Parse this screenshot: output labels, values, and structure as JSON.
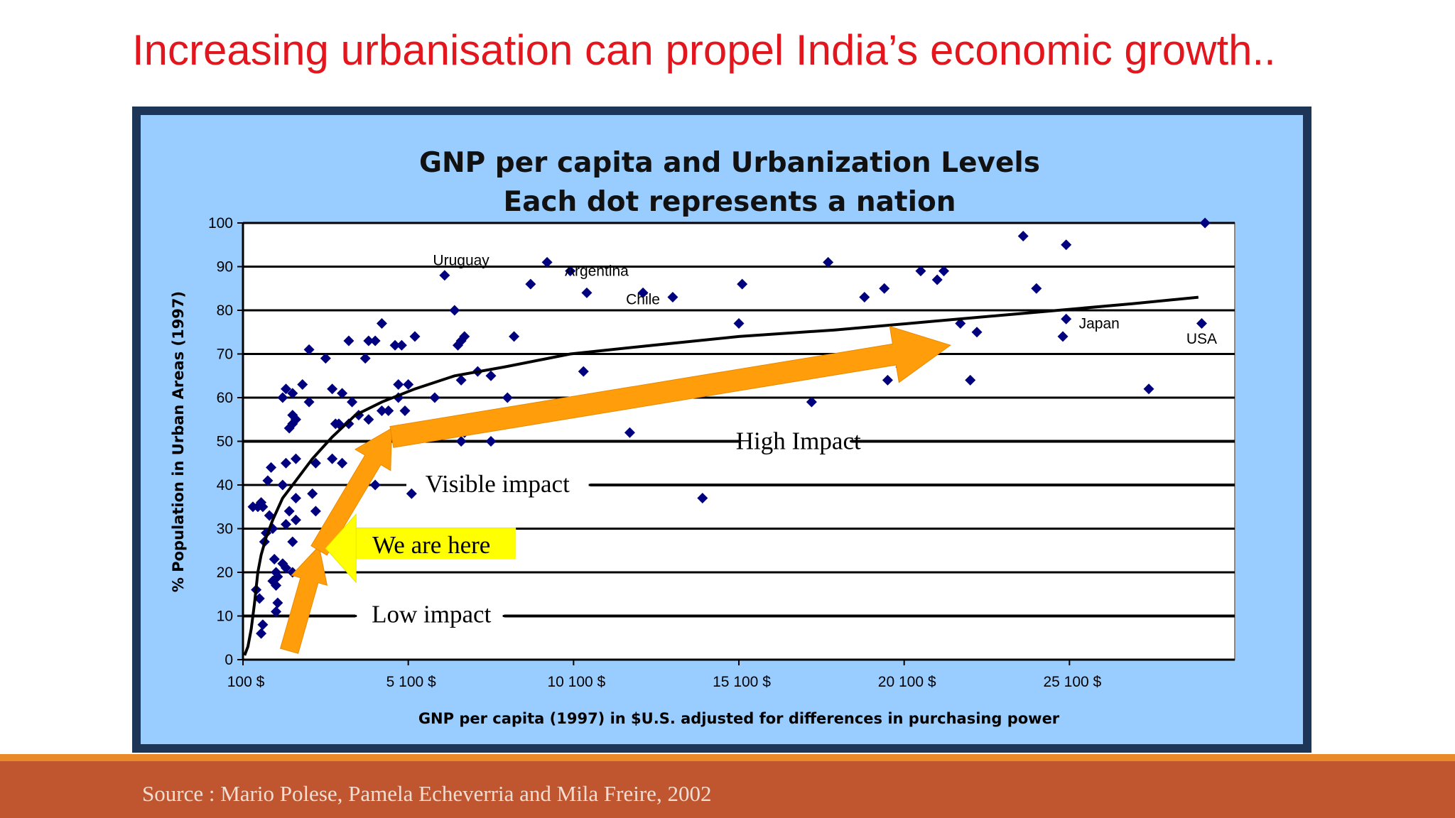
{
  "slide": {
    "title": "Increasing urbanisation can propel India’s economic growth..",
    "source": "Source : Mario Polese, Pamela Echeverria and Mila Freire, 2002"
  },
  "colors": {
    "title": "#e3161d",
    "chart_background": "#99ccff",
    "plot_background": "#ffffff",
    "point": "#00007f",
    "arrow": "#ff9d0a",
    "highlight": "#ffff00",
    "footer": "#bf5630"
  },
  "chart_data": {
    "type": "scatter",
    "title": "GNP per capita and Urbanization Levels",
    "subtitle": "Each dot represents a nation",
    "xlabel": "GNP per capita (1997) in $U.S. adjusted for differences in purchasing power",
    "ylabel": "% Population in Urban Areas (1997)",
    "xlim": [
      100,
      30100
    ],
    "ylim": [
      0,
      100
    ],
    "x_ticks": [
      {
        "value": 100,
        "label": "100  $"
      },
      {
        "value": 5100,
        "label": "5 100  $"
      },
      {
        "value": 10100,
        "label": "10 100  $"
      },
      {
        "value": 15100,
        "label": "15 100  $"
      },
      {
        "value": 20100,
        "label": "20 100  $"
      },
      {
        "value": 25100,
        "label": "25 100  $"
      }
    ],
    "y_ticks": [
      0,
      10,
      20,
      30,
      40,
      50,
      60,
      70,
      80,
      90,
      100
    ],
    "grid": "horizontal",
    "points": [
      [
        400,
        35
      ],
      [
        550,
        35
      ],
      [
        650,
        36
      ],
      [
        700,
        35
      ],
      [
        500,
        16
      ],
      [
        600,
        14
      ],
      [
        700,
        8
      ],
      [
        650,
        6
      ],
      [
        750,
        27
      ],
      [
        800,
        29
      ],
      [
        900,
        33
      ],
      [
        850,
        41
      ],
      [
        950,
        44
      ],
      [
        1000,
        30
      ],
      [
        1050,
        23
      ],
      [
        1000,
        18
      ],
      [
        1100,
        17
      ],
      [
        1100,
        20
      ],
      [
        1150,
        19
      ],
      [
        1100,
        11
      ],
      [
        1150,
        13
      ],
      [
        1300,
        22
      ],
      [
        1400,
        21
      ],
      [
        1400,
        31
      ],
      [
        1500,
        34
      ],
      [
        1600,
        27
      ],
      [
        1600,
        20
      ],
      [
        1700,
        32
      ],
      [
        1700,
        37
      ],
      [
        1300,
        40
      ],
      [
        1400,
        45
      ],
      [
        1700,
        46
      ],
      [
        1300,
        60
      ],
      [
        1400,
        62
      ],
      [
        1600,
        61
      ],
      [
        1900,
        63
      ],
      [
        1500,
        53
      ],
      [
        1600,
        56
      ],
      [
        1600,
        54
      ],
      [
        1700,
        55
      ],
      [
        2100,
        59
      ],
      [
        2100,
        71
      ],
      [
        2200,
        38
      ],
      [
        2300,
        45
      ],
      [
        2300,
        34
      ],
      [
        2300,
        24
      ],
      [
        2400,
        26
      ],
      [
        2600,
        69
      ],
      [
        2800,
        62
      ],
      [
        2800,
        46
      ],
      [
        2900,
        54
      ],
      [
        3000,
        54
      ],
      [
        3100,
        61
      ],
      [
        3100,
        45
      ],
      [
        3300,
        54
      ],
      [
        3300,
        73
      ],
      [
        3400,
        59
      ],
      [
        3600,
        56
      ],
      [
        3800,
        69
      ],
      [
        3900,
        55
      ],
      [
        3900,
        73
      ],
      [
        4100,
        73
      ],
      [
        4100,
        40
      ],
      [
        4300,
        57
      ],
      [
        4300,
        77
      ],
      [
        4500,
        57
      ],
      [
        4700,
        72
      ],
      [
        4800,
        63
      ],
      [
        4800,
        60
      ],
      [
        4900,
        72
      ],
      [
        5000,
        57
      ],
      [
        5100,
        63
      ],
      [
        5200,
        38
      ],
      [
        5300,
        74
      ],
      [
        5900,
        60
      ],
      [
        6200,
        88
      ],
      [
        6500,
        80
      ],
      [
        6600,
        72
      ],
      [
        6700,
        73
      ],
      [
        6800,
        74
      ],
      [
        6700,
        64
      ],
      [
        6700,
        50
      ],
      [
        6800,
        52
      ],
      [
        7200,
        66
      ],
      [
        7600,
        50
      ],
      [
        7600,
        65
      ],
      [
        8100,
        60
      ],
      [
        8300,
        74
      ],
      [
        8800,
        86
      ],
      [
        9300,
        91
      ],
      [
        10000,
        89
      ],
      [
        10400,
        66
      ],
      [
        10500,
        84
      ],
      [
        11800,
        52
      ],
      [
        12200,
        84
      ],
      [
        12400,
        60
      ],
      [
        13100,
        83
      ],
      [
        14000,
        37
      ],
      [
        15100,
        77
      ],
      [
        15200,
        86
      ],
      [
        17300,
        59
      ],
      [
        17800,
        91
      ],
      [
        18900,
        83
      ],
      [
        19500,
        85
      ],
      [
        19600,
        64
      ],
      [
        20000,
        67
      ],
      [
        20600,
        89
      ],
      [
        21100,
        87
      ],
      [
        21300,
        89
      ],
      [
        21800,
        77
      ],
      [
        22100,
        64
      ],
      [
        22300,
        75
      ],
      [
        23700,
        97
      ],
      [
        24100,
        85
      ],
      [
        24900,
        74
      ],
      [
        25000,
        95
      ],
      [
        25000,
        78
      ],
      [
        27500,
        62
      ],
      [
        29100,
        77
      ],
      [
        29200,
        100
      ]
    ],
    "curve": [
      [
        150,
        1
      ],
      [
        250,
        3
      ],
      [
        350,
        7
      ],
      [
        450,
        13
      ],
      [
        550,
        20
      ],
      [
        650,
        24
      ],
      [
        800,
        28
      ],
      [
        1000,
        32
      ],
      [
        1300,
        37
      ],
      [
        1700,
        41
      ],
      [
        2200,
        46
      ],
      [
        2800,
        51
      ],
      [
        3500,
        56
      ],
      [
        4300,
        59
      ],
      [
        5300,
        62
      ],
      [
        6500,
        65
      ],
      [
        8000,
        67
      ],
      [
        10000,
        70
      ],
      [
        12500,
        72
      ],
      [
        15100,
        74
      ],
      [
        18000,
        75.5
      ],
      [
        21000,
        77.5
      ],
      [
        24000,
        79.5
      ],
      [
        27000,
        81.5
      ],
      [
        29000,
        83
      ]
    ],
    "country_labels": [
      {
        "name": "Uruguay",
        "x": 6700,
        "y": 91.5
      },
      {
        "name": "Argentina",
        "x": 10800,
        "y": 89
      },
      {
        "name": "Chile",
        "x": 12200,
        "y": 82.5
      },
      {
        "name": "Japan",
        "x": 26000,
        "y": 77
      },
      {
        "name": "USA",
        "x": 29100,
        "y": 73.5
      }
    ],
    "annotations": {
      "high": {
        "text": "High Impact",
        "x": 16900,
        "y": 50.5,
        "line_from": [
          100,
          15100
        ],
        "line_to": [
          18500,
          30100
        ]
      },
      "visible": {
        "text": "Visible impact",
        "x": 7800,
        "y": 40,
        "line_from": [
          100,
          100
        ],
        "line_to": [
          10600,
          30100
        ]
      },
      "here": {
        "text": "We are here",
        "x": 6100,
        "y": 26
      },
      "low": {
        "text": "Low impact",
        "x": 5800,
        "y": 10.5,
        "line_from": [
          100,
          3500
        ],
        "line_to": [
          8000,
          30100
        ]
      }
    },
    "arrow_path": [
      [
        1500,
        2
      ],
      [
        2400,
        26
      ],
      [
        4600,
        53
      ],
      [
        21500,
        72
      ]
    ]
  }
}
